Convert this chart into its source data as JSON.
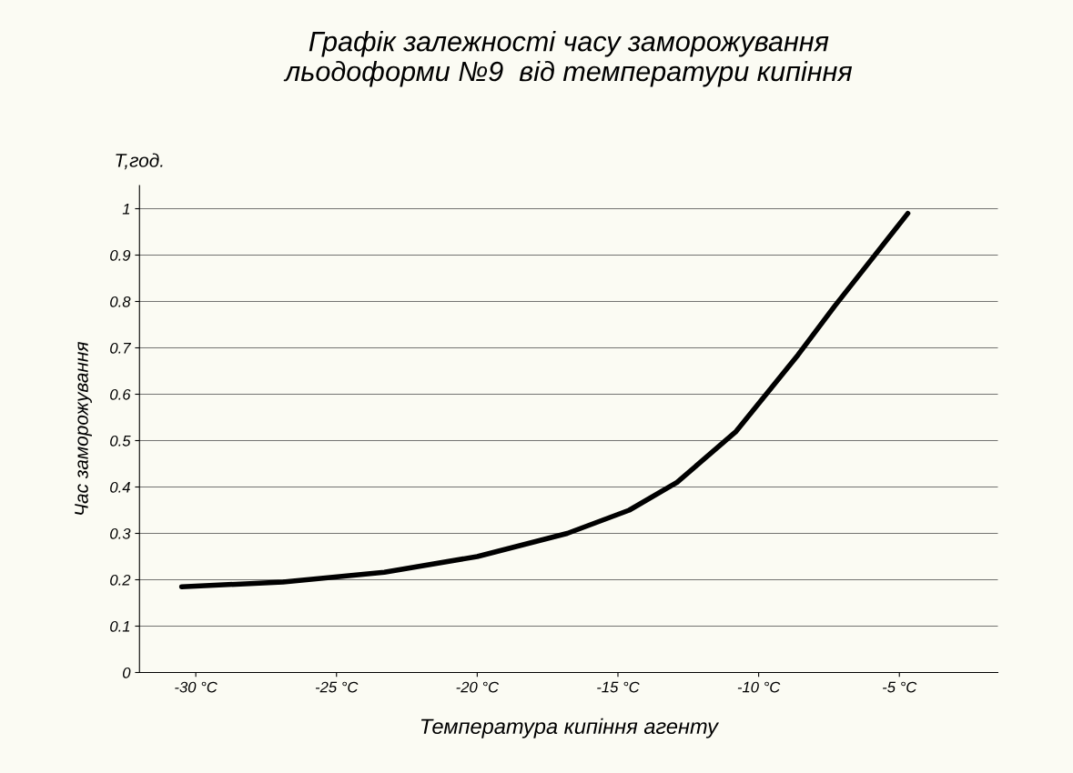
{
  "chart_data": {
    "type": "line",
    "title": "Графік залежності часу заморожування\nльодоформи №9  від температури кипіння",
    "xlabel": "Температура кипіння агенту",
    "ylabel": "Час заморожування",
    "annotations": [
      "T,год."
    ],
    "x": [
      -30.5,
      -26.9,
      -23.3,
      -20.0,
      -16.8,
      -14.6,
      -12.9,
      -10.8,
      -8.6,
      -7.3,
      -6.0,
      -4.7
    ],
    "series": [
      {
        "color": "#000000",
        "values": [
          0.185,
          0.195,
          0.216,
          0.25,
          0.3,
          0.35,
          0.41,
          0.52,
          0.685,
          0.79,
          0.89,
          0.99
        ]
      }
    ],
    "xlim": [
      -32,
      -1.5
    ],
    "xticks": [
      {
        "value": -30,
        "label": "-30 °C"
      },
      {
        "value": -25,
        "label": "-25 °C"
      },
      {
        "value": -20,
        "label": "-20 °C"
      },
      {
        "value": -15,
        "label": "-15 °C"
      },
      {
        "value": -10,
        "label": "-10 °C"
      },
      {
        "value": -5,
        "label": "-5 °C"
      }
    ],
    "ylim": [
      0,
      1.05
    ],
    "yticks": [
      0,
      0.1,
      0.2,
      0.3,
      0.4,
      0.5,
      0.6,
      0.7,
      0.8,
      0.9,
      1
    ],
    "grid": "y",
    "legend": false,
    "marker": "none",
    "line_style": "solid"
  }
}
